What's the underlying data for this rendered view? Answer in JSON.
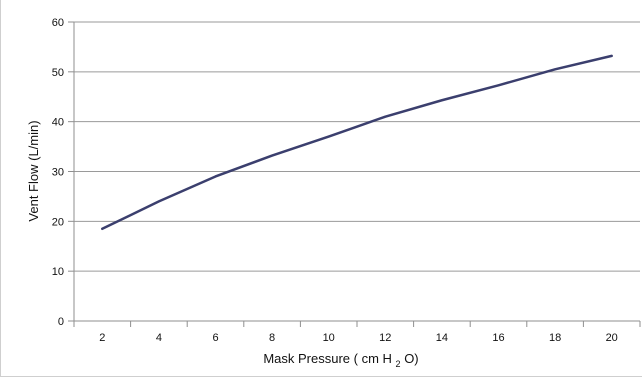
{
  "chart_data": {
    "type": "line",
    "title": "",
    "x": [
      2,
      4,
      6,
      8,
      10,
      12,
      14,
      16,
      18,
      20
    ],
    "series": [
      {
        "values": [
          18.5,
          24,
          29,
          33.2,
          37,
          41,
          44.3,
          47.3,
          50.5,
          53.2
        ]
      }
    ],
    "xlabel_parts": [
      "Mask Pressure ( cm H",
      "2",
      "O)"
    ],
    "ylabel": "Vent Flow (L/min)",
    "xticks": [
      "2",
      "4",
      "6",
      "8",
      "10",
      "12",
      "14",
      "16",
      "18",
      "20"
    ],
    "yticks": [
      "0",
      "10",
      "20",
      "30",
      "40",
      "50",
      "60"
    ],
    "ylim": [
      0,
      60
    ],
    "grid": "horizontal",
    "line_color": "#3b3f6e",
    "grid_color": "#9a9a9a"
  }
}
